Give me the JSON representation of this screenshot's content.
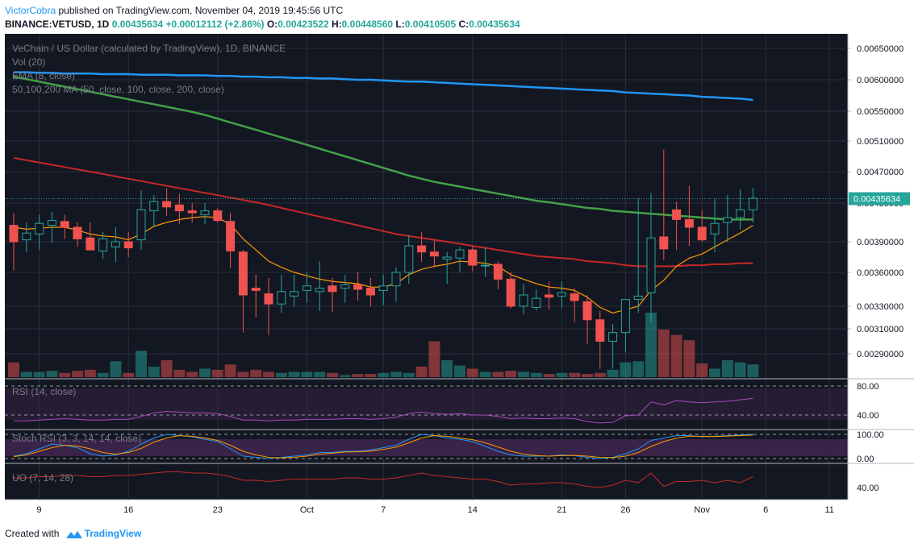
{
  "header": {
    "author": "VictorCobra",
    "published": "published on TradingView.com, November 04, 2019 19:45:56 UTC",
    "symbol": "BINANCE:VETUSD, 1D",
    "last": "0.00435634",
    "change": "+0.00012112 (+2.86%)",
    "o_label": "O:",
    "o_value": "0.00423522",
    "h_label": "H:",
    "h_value": "0.00448560",
    "l_label": "L:",
    "l_value": "0.00410505",
    "c_label": "C:",
    "c_value": "0.00435634"
  },
  "legend": {
    "title": "VeChain / US Dollar (calculated by TradingView), 1D, BINANCE",
    "vol": "Vol (20)",
    "ema": "EMA (8, close)",
    "ma": "50,100,200 MA (50, close, 100, close, 200, close)"
  },
  "panes": {
    "rsi": "RSI (14, close)",
    "stoch": "Stoch RSI (3, 3, 14, 14, close)",
    "uo": "UO (7, 14, 28)"
  },
  "footer": {
    "created": "Created with",
    "brand": "TradingView"
  },
  "colors": {
    "bg": "#131722",
    "up": "#26a69a",
    "down": "#ef5350",
    "ma50": "#43a047",
    "ma100": "#c62828",
    "ma200": "#2196f3",
    "ema": "#ff9800",
    "rsi": "#ab47bc",
    "stochK": "#2196f3",
    "stochD": "#ff9800",
    "uo": "#c62828"
  },
  "chart_data": [
    {
      "type": "candlestick",
      "title": "VeChain / US Dollar (calculated by TradingView), 1D, BINANCE",
      "x": [
        "2019-09-07",
        "2019-09-08",
        "2019-09-09",
        "2019-09-10",
        "2019-09-11",
        "2019-09-12",
        "2019-09-13",
        "2019-09-14",
        "2019-09-15",
        "2019-09-16",
        "2019-09-17",
        "2019-09-18",
        "2019-09-19",
        "2019-09-20",
        "2019-09-21",
        "2019-09-22",
        "2019-09-23",
        "2019-09-24",
        "2019-09-25",
        "2019-09-26",
        "2019-09-27",
        "2019-09-28",
        "2019-09-29",
        "2019-09-30",
        "2019-10-01",
        "2019-10-02",
        "2019-10-03",
        "2019-10-04",
        "2019-10-05",
        "2019-10-06",
        "2019-10-07",
        "2019-10-08",
        "2019-10-09",
        "2019-10-10",
        "2019-10-11",
        "2019-10-12",
        "2019-10-13",
        "2019-10-14",
        "2019-10-15",
        "2019-10-16",
        "2019-10-17",
        "2019-10-18",
        "2019-10-19",
        "2019-10-20",
        "2019-10-21",
        "2019-10-22",
        "2019-10-23",
        "2019-10-24",
        "2019-10-25",
        "2019-10-26",
        "2019-10-27",
        "2019-10-28",
        "2019-10-29",
        "2019-10-30",
        "2019-10-31",
        "2019-11-01",
        "2019-11-02",
        "2019-11-03",
        "2019-11-04"
      ],
      "open": [
        0.00407,
        0.00392,
        0.00398,
        0.00407,
        0.00411,
        0.00405,
        0.00394,
        0.00381,
        0.00385,
        0.0039,
        0.00392,
        0.00422,
        0.00432,
        0.00428,
        0.00422,
        0.00418,
        0.00422,
        0.00411,
        0.0038,
        0.00346,
        0.00341,
        0.00332,
        0.00339,
        0.00344,
        0.00343,
        0.00348,
        0.00346,
        0.00349,
        0.00346,
        0.00344,
        0.00348,
        0.0036,
        0.00386,
        0.0038,
        0.00373,
        0.00374,
        0.00382,
        0.00367,
        0.00368,
        0.00354,
        0.0033,
        0.00329,
        0.0034,
        0.00339,
        0.00341,
        0.00334,
        0.00318,
        0.003,
        0.00307,
        0.00336,
        0.00342,
        0.00395,
        0.00423,
        0.00413,
        0.00405,
        0.00398,
        0.0041,
        0.00415,
        0.00423
      ],
      "high": [
        0.0042,
        0.0041,
        0.00418,
        0.00421,
        0.00418,
        0.0041,
        0.0041,
        0.004,
        0.00405,
        0.004,
        0.00446,
        0.0044,
        0.00449,
        0.00442,
        0.0043,
        0.0043,
        0.00425,
        0.0042,
        0.00382,
        0.00358,
        0.00355,
        0.00358,
        0.00358,
        0.0036,
        0.00371,
        0.00355,
        0.00358,
        0.0036,
        0.00355,
        0.00358,
        0.00365,
        0.00397,
        0.004,
        0.00391,
        0.0038,
        0.00385,
        0.00385,
        0.00385,
        0.00371,
        0.0036,
        0.0035,
        0.00345,
        0.00352,
        0.00352,
        0.00346,
        0.0034,
        0.00326,
        0.00314,
        0.00336,
        0.00436,
        0.00443,
        0.00499,
        0.00432,
        0.00452,
        0.00423,
        0.00435,
        0.0044,
        0.00448,
        0.00449
      ],
      "low": [
        0.00362,
        0.0038,
        0.00382,
        0.00389,
        0.00393,
        0.00385,
        0.00382,
        0.00373,
        0.0037,
        0.00375,
        0.00382,
        0.00405,
        0.00417,
        0.00408,
        0.0041,
        0.00408,
        0.0041,
        0.00364,
        0.00307,
        0.0032,
        0.00305,
        0.00324,
        0.0033,
        0.00333,
        0.00326,
        0.00325,
        0.00333,
        0.00335,
        0.0033,
        0.00331,
        0.00334,
        0.0035,
        0.0037,
        0.00365,
        0.0035,
        0.0036,
        0.00361,
        0.00356,
        0.00345,
        0.00328,
        0.00323,
        0.00326,
        0.00327,
        0.00328,
        0.00316,
        0.00298,
        0.00278,
        0.00278,
        0.00291,
        0.00324,
        0.00316,
        0.00372,
        0.00382,
        0.00386,
        0.0039,
        0.0038,
        0.0039,
        0.00403,
        0.0041
      ],
      "close": [
        0.0039,
        0.00399,
        0.00409,
        0.00412,
        0.00405,
        0.00393,
        0.00382,
        0.00393,
        0.0039,
        0.00384,
        0.00423,
        0.00432,
        0.00426,
        0.00422,
        0.0042,
        0.00422,
        0.00412,
        0.00381,
        0.0034,
        0.00344,
        0.00332,
        0.00343,
        0.00343,
        0.00348,
        0.00346,
        0.00343,
        0.00349,
        0.00345,
        0.0034,
        0.00348,
        0.0036,
        0.00386,
        0.0038,
        0.00376,
        0.00375,
        0.00382,
        0.00367,
        0.00367,
        0.00354,
        0.0033,
        0.0034,
        0.00337,
        0.00338,
        0.00342,
        0.00335,
        0.00318,
        0.003,
        0.00307,
        0.00336,
        0.00339,
        0.00394,
        0.00383,
        0.00413,
        0.00405,
        0.00392,
        0.00409,
        0.00415,
        0.00423,
        0.00436
      ],
      "volume": [
        14,
        5,
        5,
        6,
        4,
        6,
        7,
        4,
        15,
        4,
        25,
        10,
        16,
        7,
        5,
        8,
        7,
        12,
        5,
        7,
        5,
        4,
        5,
        5,
        5,
        4,
        2,
        3,
        3,
        4,
        5,
        4,
        10,
        34,
        16,
        11,
        8,
        5,
        5,
        6,
        5,
        4,
        3,
        4,
        4,
        3,
        4,
        7,
        14,
        15,
        61,
        45,
        40,
        35,
        13,
        8,
        16,
        14,
        12
      ],
      "ema_8": [
        0.00405,
        0.00403,
        0.00404,
        0.00405,
        0.00405,
        0.00402,
        0.00398,
        0.00396,
        0.00395,
        0.00392,
        0.00398,
        0.00406,
        0.0041,
        0.00413,
        0.00415,
        0.00416,
        0.00415,
        0.00408,
        0.00393,
        0.00382,
        0.00371,
        0.00365,
        0.0036,
        0.00357,
        0.00354,
        0.00352,
        0.00351,
        0.0035,
        0.00347,
        0.00347,
        0.0035,
        0.00358,
        0.00363,
        0.00366,
        0.00368,
        0.00371,
        0.0037,
        0.00369,
        0.00366,
        0.00358,
        0.00354,
        0.0035,
        0.00347,
        0.00346,
        0.00344,
        0.00338,
        0.00329,
        0.00324,
        0.00327,
        0.0033,
        0.00344,
        0.00353,
        0.00366,
        0.00374,
        0.00378,
        0.00385,
        0.00392,
        0.00399,
        0.00407
      ],
      "ma_50": [
        0.00605,
        0.00601,
        0.00597,
        0.00593,
        0.00589,
        0.00585,
        0.00581,
        0.00577,
        0.00573,
        0.00569,
        0.00565,
        0.00561,
        0.00557,
        0.00553,
        0.00549,
        0.00545,
        0.0054,
        0.00535,
        0.0053,
        0.00525,
        0.0052,
        0.00515,
        0.0051,
        0.00505,
        0.005,
        0.00495,
        0.0049,
        0.00485,
        0.0048,
        0.00475,
        0.0047,
        0.00465,
        0.00461,
        0.00457,
        0.00454,
        0.00451,
        0.00448,
        0.00445,
        0.00442,
        0.00439,
        0.00436,
        0.00433,
        0.00431,
        0.00429,
        0.00427,
        0.00425,
        0.00424,
        0.00422,
        0.00421,
        0.0042,
        0.00419,
        0.00418,
        0.00417,
        0.00416,
        0.00415,
        0.00414,
        0.00413,
        0.00413,
        0.00413
      ],
      "ma_100": [
        0.00488,
        0.00485,
        0.00482,
        0.00479,
        0.00476,
        0.00473,
        0.0047,
        0.00467,
        0.00464,
        0.00461,
        0.00458,
        0.00455,
        0.00452,
        0.00449,
        0.00446,
        0.00443,
        0.0044,
        0.00437,
        0.00434,
        0.00431,
        0.00428,
        0.00425,
        0.00422,
        0.00419,
        0.00416,
        0.00413,
        0.0041,
        0.00407,
        0.00404,
        0.00401,
        0.00398,
        0.00396,
        0.00394,
        0.00392,
        0.0039,
        0.00388,
        0.00386,
        0.00384,
        0.00382,
        0.0038,
        0.00378,
        0.00376,
        0.00375,
        0.00374,
        0.00373,
        0.00371,
        0.0037,
        0.00369,
        0.00367,
        0.00366,
        0.00366,
        0.00366,
        0.00366,
        0.00367,
        0.00367,
        0.00368,
        0.00368,
        0.00369,
        0.00369
      ],
      "ma_200": [
        0.00612,
        0.00612,
        0.00611,
        0.00611,
        0.0061,
        0.0061,
        0.0061,
        0.00609,
        0.00609,
        0.00609,
        0.00608,
        0.00608,
        0.00608,
        0.00607,
        0.00607,
        0.00607,
        0.00606,
        0.00606,
        0.00605,
        0.00605,
        0.00604,
        0.00604,
        0.00603,
        0.00603,
        0.00602,
        0.00602,
        0.00601,
        0.006,
        0.006,
        0.00599,
        0.00598,
        0.00597,
        0.00597,
        0.00596,
        0.00595,
        0.00594,
        0.00593,
        0.00592,
        0.00591,
        0.0059,
        0.00589,
        0.00588,
        0.00587,
        0.00586,
        0.00585,
        0.00584,
        0.00583,
        0.00582,
        0.0058,
        0.00579,
        0.00578,
        0.00577,
        0.00576,
        0.00575,
        0.00573,
        0.00572,
        0.00571,
        0.0057,
        0.00568
      ],
      "price_ticks": [
        "0.00650000",
        "0.00600000",
        "0.00550000",
        "0.00510000",
        "0.00470000",
        "0.00430000",
        "0.00390000",
        "0.00360000",
        "0.00330000",
        "0.00310000",
        "0.00290000"
      ],
      "last_price": "0.00435634",
      "x_ticks": [
        {
          "label": "9",
          "index": 2
        },
        {
          "label": "16",
          "index": 9
        },
        {
          "label": "23",
          "index": 16
        },
        {
          "label": "Oct",
          "index": 23
        },
        {
          "label": "7",
          "index": 29
        },
        {
          "label": "14",
          "index": 36
        },
        {
          "label": "21",
          "index": 43
        },
        {
          "label": "26",
          "index": 48
        },
        {
          "label": "Nov",
          "index": 54
        },
        {
          "label": "6",
          "index": 59
        },
        {
          "label": "11",
          "index": 64
        }
      ]
    },
    {
      "type": "line",
      "title": "RSI (14, close)",
      "values": [
        32,
        32,
        33,
        34,
        35,
        34,
        33,
        33,
        34,
        34,
        38,
        43,
        45,
        44,
        43,
        43,
        42,
        38,
        33,
        33,
        32,
        33,
        33,
        34,
        34,
        34,
        35,
        35,
        34,
        35,
        37,
        42,
        44,
        42,
        41,
        42,
        40,
        40,
        38,
        35,
        36,
        35,
        35,
        36,
        35,
        31,
        29,
        30,
        39,
        40,
        58,
        54,
        60,
        58,
        57,
        58,
        59,
        61,
        63
      ],
      "ticks": [
        "80.00",
        "40.00"
      ],
      "ylim": [
        20,
        90
      ]
    },
    {
      "type": "line",
      "title": "Stoch RSI (3, 3, 14, 14, close)",
      "series": [
        {
          "values": [
            10,
            20,
            40,
            60,
            55,
            45,
            20,
            10,
            15,
            30,
            60,
            85,
            100,
            95,
            90,
            80,
            70,
            40,
            10,
            5,
            0,
            5,
            10,
            15,
            25,
            25,
            30,
            30,
            35,
            45,
            55,
            80,
            100,
            95,
            85,
            80,
            70,
            50,
            30,
            15,
            10,
            10,
            10,
            15,
            12,
            5,
            0,
            5,
            20,
            40,
            75,
            85,
            95,
            95,
            90,
            92,
            95,
            97,
            100
          ]
        },
        {
          "values": [
            8,
            15,
            30,
            45,
            55,
            52,
            40,
            25,
            18,
            25,
            42,
            68,
            85,
            95,
            92,
            85,
            75,
            55,
            30,
            15,
            5,
            3,
            5,
            10,
            18,
            22,
            27,
            28,
            31,
            38,
            47,
            65,
            85,
            95,
            92,
            85,
            78,
            65,
            48,
            30,
            18,
            12,
            10,
            12,
            13,
            10,
            5,
            4,
            10,
            25,
            50,
            70,
            85,
            92,
            92,
            91,
            93,
            95,
            97
          ]
        }
      ],
      "ticks": [
        "100.00",
        "0.00"
      ],
      "ylim": [
        -20,
        120
      ]
    },
    {
      "type": "line",
      "title": "UO (7, 14, 28)",
      "values": [
        48,
        48,
        49,
        49,
        50,
        50,
        49,
        49,
        50,
        50,
        51,
        52,
        53,
        53,
        52,
        52,
        51,
        49,
        46,
        46,
        45,
        46,
        47,
        47,
        47,
        47,
        48,
        48,
        47,
        47,
        48,
        50,
        52,
        50,
        49,
        48,
        47,
        47,
        45,
        42,
        43,
        43,
        44,
        44,
        43,
        41,
        40,
        42,
        46,
        44,
        52,
        41,
        45,
        45,
        46,
        44,
        46,
        44,
        49
      ],
      "ticks": [
        "40.00"
      ],
      "ylim": [
        30,
        60
      ]
    }
  ]
}
